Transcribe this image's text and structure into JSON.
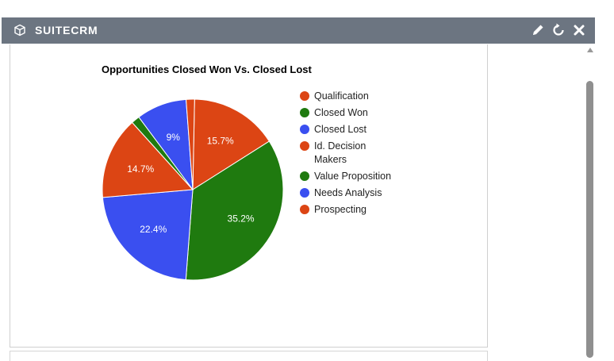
{
  "window": {
    "title": "SUITECRM",
    "icons": {
      "module": "cube-icon",
      "edit": "pencil-icon",
      "refresh": "refresh-icon",
      "close": "close-icon"
    }
  },
  "chart_data": {
    "type": "pie",
    "title": "Opportunities Closed Won Vs. Closed Lost",
    "legend_position": "right",
    "slices": [
      {
        "label": "Qualification",
        "value": 15.7,
        "display": "15.7%",
        "color": "#dc4514"
      },
      {
        "label": "Closed Won",
        "value": 35.2,
        "display": "35.2%",
        "color": "#1f7a0f"
      },
      {
        "label": "Closed Lost",
        "value": 22.4,
        "display": "22.4%",
        "color": "#3a4ff0"
      },
      {
        "label": "Id. Decision Makers",
        "value": 14.7,
        "display": "14.7%",
        "color": "#dc4514"
      },
      {
        "label": "Value Proposition",
        "value": 1.5,
        "display": "",
        "color": "#1f7a0f"
      },
      {
        "label": "Needs Analysis",
        "value": 9,
        "display": "9%",
        "color": "#3a4ff0"
      },
      {
        "label": "Prospecting",
        "value": 1.5,
        "display": "",
        "color": "#dc4514"
      }
    ]
  }
}
